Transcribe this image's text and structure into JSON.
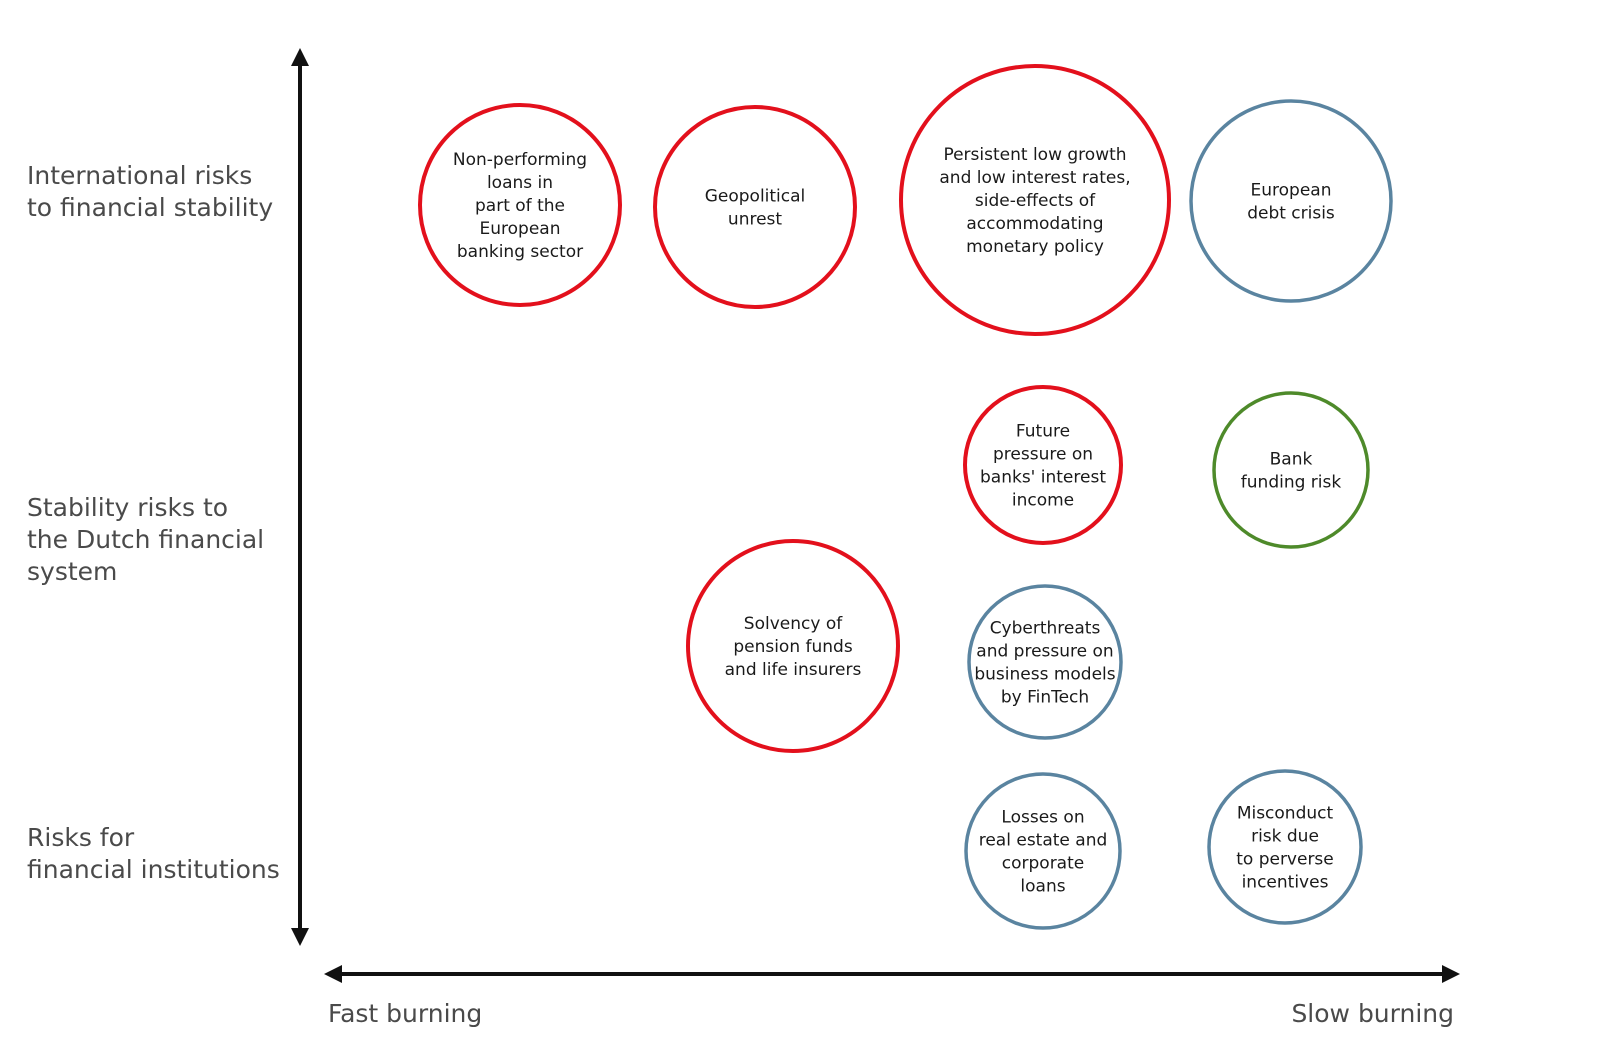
{
  "diagram": {
    "colors": {
      "red": "#e3101c",
      "blue": "#5a84a0",
      "green": "#4e8a2a",
      "axis": "#111111"
    },
    "y_axis": {
      "rows": [
        {
          "label": "International risks\nto financial stability"
        },
        {
          "label": "Stability risks to\nthe Dutch financial\nsystem"
        },
        {
          "label": "Risks for\n financial institutions"
        }
      ]
    },
    "x_axis": {
      "left_label": "Fast burning",
      "right_label": "Slow burning"
    },
    "bubbles": [
      {
        "id": "npl",
        "color": "red",
        "lines": [
          "Non-performing",
          "loans in",
          "part of the",
          "European",
          "banking sector"
        ]
      },
      {
        "id": "geopolitical",
        "color": "red",
        "lines": [
          "Geopolitical",
          "unrest"
        ]
      },
      {
        "id": "low-growth",
        "color": "red",
        "lines": [
          "Persistent low growth",
          "and low interest rates,",
          "side-effects of",
          "accommodating",
          "monetary policy"
        ]
      },
      {
        "id": "debt-crisis",
        "color": "blue",
        "lines": [
          "European",
          "debt crisis"
        ]
      },
      {
        "id": "interest-income",
        "color": "red",
        "lines": [
          "Future",
          "pressure on",
          "banks' interest",
          "income"
        ]
      },
      {
        "id": "funding-risk",
        "color": "green",
        "lines": [
          "Bank",
          "funding risk"
        ]
      },
      {
        "id": "solvency",
        "color": "red",
        "lines": [
          "Solvency of",
          "pension funds",
          "and life insurers"
        ]
      },
      {
        "id": "cyber",
        "color": "blue",
        "lines": [
          "Cyberthreats",
          "and pressure on",
          "business models",
          "by FinTech"
        ]
      },
      {
        "id": "losses",
        "color": "blue",
        "lines": [
          "Losses on",
          "real estate and",
          "corporate",
          "loans"
        ]
      },
      {
        "id": "misconduct",
        "color": "blue",
        "lines": [
          "Misconduct",
          "risk due",
          "to perverse",
          "incentives"
        ]
      }
    ]
  }
}
